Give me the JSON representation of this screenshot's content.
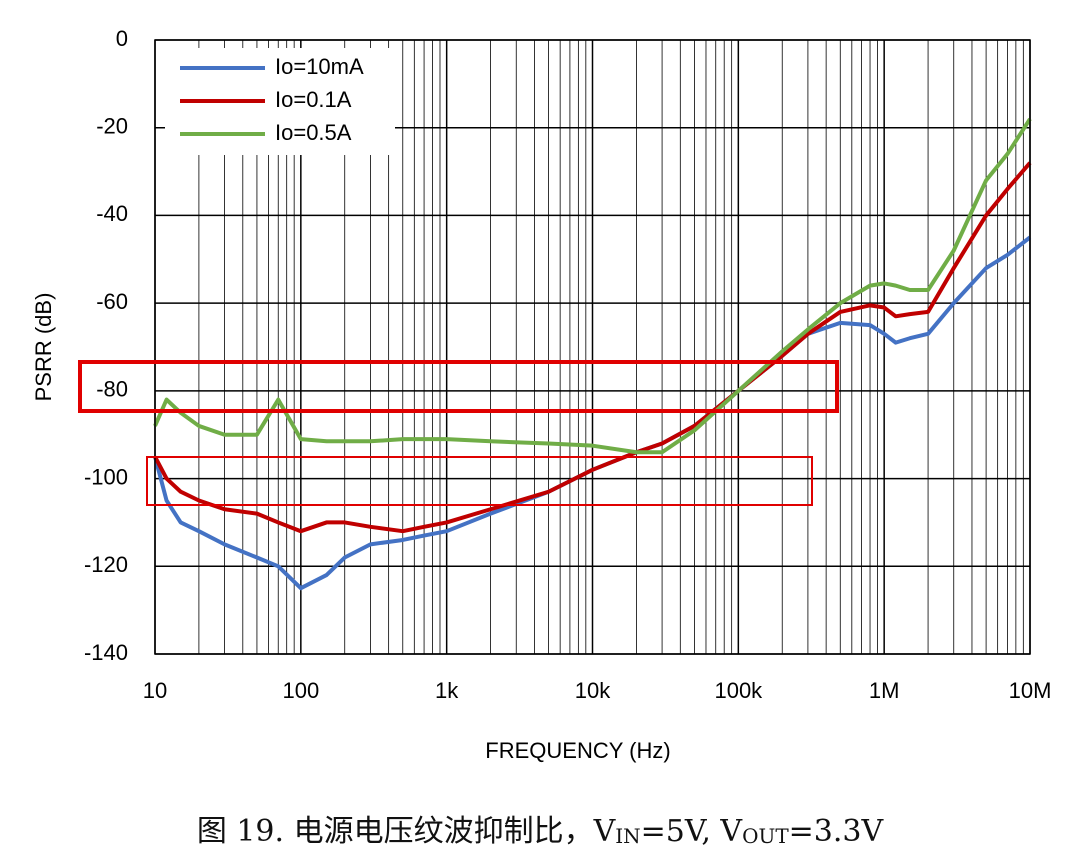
{
  "chart_data": {
    "type": "line",
    "x_label": "FREQUENCY (Hz)",
    "y_label": "PSRR (dB)",
    "xscale": "log",
    "grid": true,
    "legend": "upper left",
    "xlim": [
      10,
      10000000
    ],
    "ylim": [
      -140,
      0
    ],
    "xticks": [
      10,
      100,
      {
        "value": 1000,
        "label": "1k"
      },
      {
        "value": 10000,
        "label": "10k"
      },
      {
        "value": 100000,
        "label": "100k"
      },
      {
        "value": 1000000,
        "label": "1M"
      },
      {
        "value": 10000000,
        "label": "10M"
      }
    ],
    "yticks": [
      0,
      -20,
      -40,
      -60,
      -80,
      -100,
      -120,
      -140
    ],
    "x": [
      10,
      12,
      15,
      20,
      30,
      50,
      70,
      100,
      150,
      200,
      300,
      500,
      700,
      1000,
      2000,
      5000,
      10000,
      20000,
      30000,
      50000,
      100000,
      200000,
      300000,
      500000,
      800000,
      1000000,
      1200000,
      1500000,
      2000000,
      3000000,
      5000000,
      7000000,
      10000000
    ],
    "series": [
      {
        "name": "Io=10mA",
        "color": "#4472c4",
        "values": [
          -95,
          -105,
          -110,
          -112,
          -115,
          -118,
          -120,
          -125,
          -122,
          -118,
          -115,
          -114,
          -113,
          -112,
          -108,
          -103,
          -98,
          -94,
          -92,
          -88,
          -80,
          -72,
          -67,
          -64.5,
          -65,
          -67,
          -69,
          -68,
          -67,
          -60,
          -52,
          -49,
          -45
        ]
      },
      {
        "name": "Io=0.1A",
        "color": "#c00000",
        "values": [
          -95,
          -100,
          -103,
          -105,
          -107,
          -108,
          -110,
          -112,
          -110,
          -110,
          -111,
          -112,
          -111,
          -110,
          -107,
          -103,
          -98,
          -94,
          -92,
          -88,
          -80,
          -72,
          -67,
          -62,
          -60.5,
          -61,
          -63,
          -62.5,
          -62,
          -52,
          -40,
          -34,
          -28
        ]
      },
      {
        "name": "Io=0.5A",
        "color": "#70ad47",
        "values": [
          -88,
          -82,
          -85,
          -88,
          -90,
          -90,
          -82,
          -91,
          -91.5,
          -91.5,
          -91.5,
          -91,
          -91,
          -91,
          -91.5,
          -92,
          -92.5,
          -94,
          -94,
          -89,
          -80,
          -71,
          -66,
          -60,
          -56,
          -55.5,
          -56,
          -57,
          -57,
          -48,
          -32,
          -26,
          -18
        ]
      }
    ],
    "caption": [
      "图 19. 电源电压纹波抑制比，V",
      "IN",
      "=5V, V",
      "OUT",
      "=3.3V"
    ]
  }
}
